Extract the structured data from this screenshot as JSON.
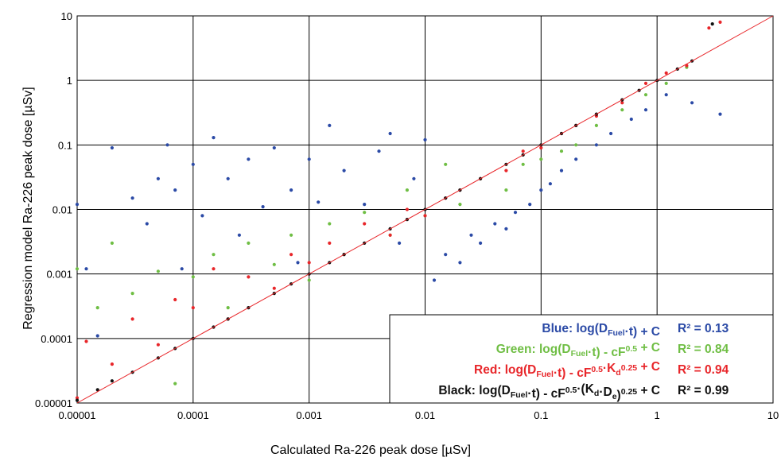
{
  "chart_data": {
    "type": "scatter",
    "xlabel": "Calculated Ra-226 peak dose [µSv]",
    "ylabel": "Regression model Ra-226 peak dose [µSv]",
    "x_scale": "log",
    "y_scale": "log",
    "xlim": [
      1e-05,
      10
    ],
    "ylim": [
      1e-05,
      10
    ],
    "x_ticks": [
      "0.00001",
      "0.0001",
      "0.001",
      "0.01",
      "0.1",
      "1",
      "10"
    ],
    "y_ticks": [
      "0.00001",
      "0.0001",
      "0.001",
      "0.01",
      "0.1",
      "1",
      "10"
    ],
    "grid": true,
    "reference_line": {
      "from": [
        1e-05,
        1e-05
      ],
      "to": [
        10,
        10
      ],
      "color": "#e8262a"
    },
    "legend_position": "bottom-right",
    "series": [
      {
        "key": "blue",
        "color": "#2b4aa6",
        "points": [
          [
            1e-05,
            0.012
          ],
          [
            1.2e-05,
            0.0012
          ],
          [
            1.5e-05,
            0.00011
          ],
          [
            2e-05,
            0.09
          ],
          [
            3e-05,
            0.015
          ],
          [
            4e-05,
            0.006
          ],
          [
            5e-05,
            0.03
          ],
          [
            6e-05,
            0.1
          ],
          [
            7e-05,
            0.02
          ],
          [
            8e-05,
            0.0012
          ],
          [
            0.0001,
            0.05
          ],
          [
            0.00012,
            0.008
          ],
          [
            0.00015,
            0.13
          ],
          [
            0.0002,
            0.03
          ],
          [
            0.00025,
            0.004
          ],
          [
            0.0003,
            0.06
          ],
          [
            0.0004,
            0.011
          ],
          [
            0.0005,
            0.09
          ],
          [
            0.0007,
            0.02
          ],
          [
            0.0008,
            0.0015
          ],
          [
            0.001,
            0.06
          ],
          [
            0.0012,
            0.013
          ],
          [
            0.0015,
            0.2
          ],
          [
            0.002,
            0.04
          ],
          [
            0.003,
            0.012
          ],
          [
            0.004,
            0.08
          ],
          [
            0.005,
            0.15
          ],
          [
            0.006,
            0.003
          ],
          [
            0.008,
            0.03
          ],
          [
            0.01,
            0.12
          ],
          [
            0.012,
            0.0008
          ],
          [
            0.015,
            0.002
          ],
          [
            0.02,
            0.0015
          ],
          [
            0.025,
            0.004
          ],
          [
            0.03,
            0.003
          ],
          [
            0.04,
            0.006
          ],
          [
            0.05,
            0.005
          ],
          [
            0.06,
            0.009
          ],
          [
            0.08,
            0.012
          ],
          [
            0.1,
            0.02
          ],
          [
            0.12,
            0.025
          ],
          [
            0.15,
            0.04
          ],
          [
            0.2,
            0.06
          ],
          [
            0.3,
            0.1
          ],
          [
            0.4,
            0.15
          ],
          [
            0.6,
            0.25
          ],
          [
            0.8,
            0.35
          ],
          [
            1.2,
            0.6
          ],
          [
            2,
            0.45
          ],
          [
            3.5,
            0.3
          ]
        ]
      },
      {
        "key": "green",
        "color": "#6fbe44",
        "points": [
          [
            1e-05,
            0.0012
          ],
          [
            1.5e-05,
            0.0003
          ],
          [
            2e-05,
            0.003
          ],
          [
            3e-05,
            0.0005
          ],
          [
            5e-05,
            0.0011
          ],
          [
            7e-05,
            2e-05
          ],
          [
            0.0001,
            0.0009
          ],
          [
            0.00015,
            0.002
          ],
          [
            0.0002,
            0.0003
          ],
          [
            0.0003,
            0.003
          ],
          [
            0.0005,
            0.0014
          ],
          [
            0.0007,
            0.004
          ],
          [
            0.001,
            0.0008
          ],
          [
            0.0015,
            0.006
          ],
          [
            0.002,
            0.002
          ],
          [
            0.003,
            0.009
          ],
          [
            0.005,
            0.004
          ],
          [
            0.007,
            0.02
          ],
          [
            0.01,
            0.008
          ],
          [
            0.015,
            0.05
          ],
          [
            0.02,
            0.012
          ],
          [
            0.03,
            0.03
          ],
          [
            0.05,
            0.02
          ],
          [
            0.07,
            0.05
          ],
          [
            0.1,
            0.06
          ],
          [
            0.15,
            0.08
          ],
          [
            0.2,
            0.1
          ],
          [
            0.3,
            0.2
          ],
          [
            0.5,
            0.35
          ],
          [
            0.8,
            0.6
          ],
          [
            1.2,
            0.9
          ],
          [
            1.8,
            1.6
          ]
        ]
      },
      {
        "key": "red",
        "color": "#e8262a",
        "points": [
          [
            1e-05,
            1.2e-05
          ],
          [
            1.2e-05,
            9e-05
          ],
          [
            2e-05,
            4e-05
          ],
          [
            3e-05,
            0.0002
          ],
          [
            5e-05,
            8e-05
          ],
          [
            7e-05,
            0.0004
          ],
          [
            0.0001,
            0.0003
          ],
          [
            0.00015,
            0.0012
          ],
          [
            0.0002,
            0.0002
          ],
          [
            0.0003,
            0.0009
          ],
          [
            0.0005,
            0.0006
          ],
          [
            0.0007,
            0.002
          ],
          [
            0.001,
            0.0015
          ],
          [
            0.0015,
            0.003
          ],
          [
            0.002,
            0.002
          ],
          [
            0.003,
            0.006
          ],
          [
            0.005,
            0.004
          ],
          [
            0.007,
            0.01
          ],
          [
            0.01,
            0.008
          ],
          [
            0.015,
            0.015
          ],
          [
            0.02,
            0.02
          ],
          [
            0.03,
            0.03
          ],
          [
            0.05,
            0.04
          ],
          [
            0.07,
            0.08
          ],
          [
            0.1,
            0.09
          ],
          [
            0.15,
            0.15
          ],
          [
            0.2,
            0.2
          ],
          [
            0.3,
            0.28
          ],
          [
            0.5,
            0.45
          ],
          [
            0.8,
            0.9
          ],
          [
            1.2,
            1.3
          ],
          [
            1.8,
            1.7
          ],
          [
            2.8,
            6.5
          ],
          [
            3.5,
            8
          ]
        ]
      },
      {
        "key": "black",
        "color": "#111111",
        "points": [
          [
            1e-05,
            1.1e-05
          ],
          [
            1.5e-05,
            1.6e-05
          ],
          [
            2e-05,
            2.2e-05
          ],
          [
            3e-05,
            3e-05
          ],
          [
            5e-05,
            5e-05
          ],
          [
            7e-05,
            7e-05
          ],
          [
            0.0001,
            0.0001
          ],
          [
            0.00015,
            0.00015
          ],
          [
            0.0002,
            0.0002
          ],
          [
            0.0003,
            0.0003
          ],
          [
            0.0005,
            0.0005
          ],
          [
            0.0007,
            0.0007
          ],
          [
            0.001,
            0.001
          ],
          [
            0.0015,
            0.0015
          ],
          [
            0.002,
            0.002
          ],
          [
            0.003,
            0.003
          ],
          [
            0.005,
            0.005
          ],
          [
            0.007,
            0.007
          ],
          [
            0.01,
            0.01
          ],
          [
            0.015,
            0.015
          ],
          [
            0.02,
            0.02
          ],
          [
            0.03,
            0.03
          ],
          [
            0.05,
            0.05
          ],
          [
            0.07,
            0.07
          ],
          [
            0.1,
            0.1
          ],
          [
            0.15,
            0.15
          ],
          [
            0.2,
            0.2
          ],
          [
            0.3,
            0.3
          ],
          [
            0.5,
            0.5
          ],
          [
            0.7,
            0.7
          ],
          [
            1,
            1
          ],
          [
            1.5,
            1.5
          ],
          [
            2,
            2
          ],
          [
            3,
            7.5
          ]
        ]
      }
    ],
    "legend": [
      {
        "key": "blue",
        "color": "#2b4aa6",
        "label": "Blue:",
        "formula": "log(D_Fuel·t) + C",
        "r2": "R² = 0.13"
      },
      {
        "key": "green",
        "color": "#6fbe44",
        "label": "Green:",
        "formula": "log(D_Fuel·t) - cF^0.5 + C",
        "r2": "R² = 0.84"
      },
      {
        "key": "red",
        "color": "#e8262a",
        "label": "Red:",
        "formula": "log(D_Fuel·t) - cF^0.5·K_d^0.25 + C",
        "r2": "R² = 0.94"
      },
      {
        "key": "black",
        "color": "#111111",
        "label": "Black:",
        "formula": "log(D_Fuel·t) - cF^0.5·(K_d·D_e)^0.25 + C",
        "r2": "R² = 0.99"
      }
    ]
  }
}
